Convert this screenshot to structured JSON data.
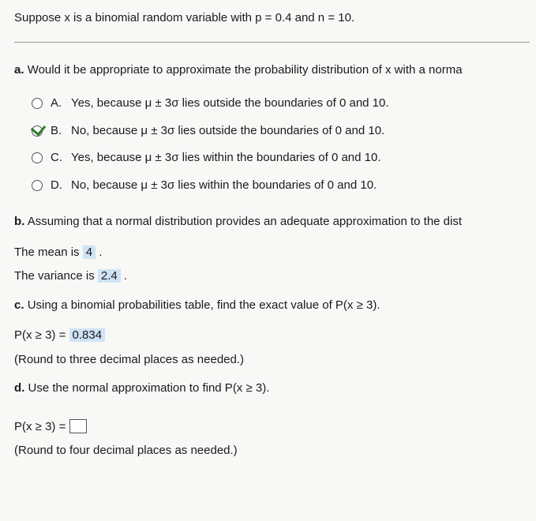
{
  "header": "Suppose x is a binomial random variable with p = 0.4 and n = 10.",
  "partA": {
    "label": "a.",
    "question": "Would it be appropriate to approximate the probability distribution of x with a norma",
    "options": [
      {
        "letter": "A.",
        "text": "Yes, because μ ± 3σ lies outside the boundaries of 0 and 10.",
        "checked": false
      },
      {
        "letter": "B.",
        "text": "No, because μ ± 3σ lies outside the boundaries of 0 and 10.",
        "checked": true
      },
      {
        "letter": "C.",
        "text": "Yes, because μ ± 3σ lies within the boundaries of 0 and 10.",
        "checked": false
      },
      {
        "letter": "D.",
        "text": "No, because μ ± 3σ lies within the boundaries of 0 and 10.",
        "checked": false
      }
    ]
  },
  "partB": {
    "label": "b.",
    "question": "Assuming that a normal distribution provides an adequate approximation to the dist",
    "mean_prefix": "The mean is ",
    "mean_value": "4",
    "mean_suffix": " .",
    "variance_prefix": "The variance is ",
    "variance_value": "2.4",
    "variance_suffix": " ."
  },
  "partC": {
    "label": "c.",
    "question": "Using a binomial probabilities table, find the exact value of P(x ≥ 3).",
    "result_prefix": "P(x ≥ 3) = ",
    "result_value": "0.834",
    "round_note": "(Round to three decimal places as needed.)"
  },
  "partD": {
    "label": "d.",
    "question": "Use the normal approximation to find P(x ≥ 3).",
    "result_prefix": "P(x ≥ 3) = ",
    "round_note": "(Round to four decimal places as needed.)"
  },
  "colors": {
    "text": "#1a1a1a",
    "background": "#f8f8f6",
    "highlight": "#cfe3f5",
    "checkmark": "#2e7d32",
    "radio_border": "#555555",
    "hr": "#999999"
  }
}
